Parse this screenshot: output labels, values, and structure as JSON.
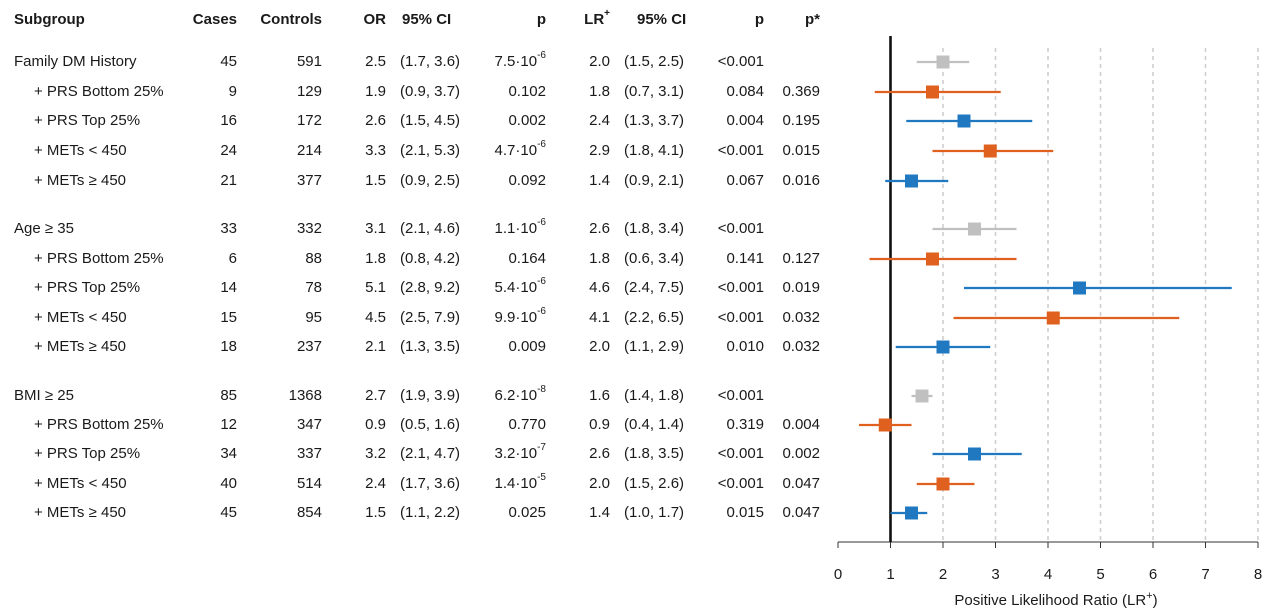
{
  "headers": {
    "subgroup": "Subgroup",
    "cases": "Cases",
    "controls": "Controls",
    "or": "OR",
    "ci1": "95% CI",
    "p1": "p",
    "lr": "LR",
    "lr_sup": "+",
    "ci2": "95% CI",
    "p2": "p",
    "pstar": "p*"
  },
  "rows": [
    {
      "label": "Family DM History",
      "indent": false,
      "cases": "45",
      "controls": "591",
      "or": "2.5",
      "ci": "(1.7, 3.6)",
      "p_base": "7.5·10",
      "p_exp": "-6",
      "lr": "2.0",
      "lrci": "(1.5, 2.5)",
      "lrp": "<0.001",
      "pstar": ""
    },
    {
      "label": "+ PRS Bottom 25%",
      "indent": true,
      "cases": "9",
      "controls": "129",
      "or": "1.9",
      "ci": "(0.9, 3.7)",
      "p_base": "0.102",
      "p_exp": "",
      "lr": "1.8",
      "lrci": "(0.7, 3.1)",
      "lrp": "0.084",
      "pstar": "0.369"
    },
    {
      "label": "+ PRS Top 25%",
      "indent": true,
      "cases": "16",
      "controls": "172",
      "or": "2.6",
      "ci": "(1.5, 4.5)",
      "p_base": "0.002",
      "p_exp": "",
      "lr": "2.4",
      "lrci": "(1.3, 3.7)",
      "lrp": "0.004",
      "pstar": "0.195"
    },
    {
      "label": "+ METs < 450",
      "indent": true,
      "cases": "24",
      "controls": "214",
      "or": "3.3",
      "ci": "(2.1, 5.3)",
      "p_base": "4.7·10",
      "p_exp": "-6",
      "lr": "2.9",
      "lrci": "(1.8, 4.1)",
      "lrp": "<0.001",
      "pstar": "0.015"
    },
    {
      "label": "+ METs ≥ 450",
      "indent": true,
      "cases": "21",
      "controls": "377",
      "or": "1.5",
      "ci": "(0.9, 2.5)",
      "p_base": "0.092",
      "p_exp": "",
      "lr": "1.4",
      "lrci": "(0.9, 2.1)",
      "lrp": "0.067",
      "pstar": "0.016"
    },
    {
      "label": "Age ≥ 35",
      "indent": false,
      "cases": "33",
      "controls": "332",
      "or": "3.1",
      "ci": "(2.1, 4.6)",
      "p_base": "1.1·10",
      "p_exp": "-6",
      "lr": "2.6",
      "lrci": "(1.8, 3.4)",
      "lrp": "<0.001",
      "pstar": ""
    },
    {
      "label": "+ PRS Bottom 25%",
      "indent": true,
      "cases": "6",
      "controls": "88",
      "or": "1.8",
      "ci": "(0.8, 4.2)",
      "p_base": "0.164",
      "p_exp": "",
      "lr": "1.8",
      "lrci": "(0.6, 3.4)",
      "lrp": "0.141",
      "pstar": "0.127"
    },
    {
      "label": "+ PRS Top 25%",
      "indent": true,
      "cases": "14",
      "controls": "78",
      "or": "5.1",
      "ci": "(2.8, 9.2)",
      "p_base": "5.4·10",
      "p_exp": "-6",
      "lr": "4.6",
      "lrci": "(2.4, 7.5)",
      "lrp": "<0.001",
      "pstar": "0.019"
    },
    {
      "label": "+ METs < 450",
      "indent": true,
      "cases": "15",
      "controls": "95",
      "or": "4.5",
      "ci": "(2.5, 7.9)",
      "p_base": "9.9·10",
      "p_exp": "-6",
      "lr": "4.1",
      "lrci": "(2.2, 6.5)",
      "lrp": "<0.001",
      "pstar": "0.032"
    },
    {
      "label": "+ METs ≥ 450",
      "indent": true,
      "cases": "18",
      "controls": "237",
      "or": "2.1",
      "ci": "(1.3, 3.5)",
      "p_base": "0.009",
      "p_exp": "",
      "lr": "2.0",
      "lrci": "(1.1, 2.9)",
      "lrp": "0.010",
      "pstar": "0.032"
    },
    {
      "label": "BMI ≥ 25",
      "indent": false,
      "cases": "85",
      "controls": "1368",
      "or": "2.7",
      "ci": "(1.9, 3.9)",
      "p_base": "6.2·10",
      "p_exp": "-8",
      "lr": "1.6",
      "lrci": "(1.4, 1.8)",
      "lrp": "<0.001",
      "pstar": ""
    },
    {
      "label": "+ PRS Bottom 25%",
      "indent": true,
      "cases": "12",
      "controls": "347",
      "or": "0.9",
      "ci": "(0.5, 1.6)",
      "p_base": "0.770",
      "p_exp": "",
      "lr": "0.9",
      "lrci": "(0.4, 1.4)",
      "lrp": "0.319",
      "pstar": "0.004"
    },
    {
      "label": "+ PRS Top 25%",
      "indent": true,
      "cases": "34",
      "controls": "337",
      "or": "3.2",
      "ci": "(2.1, 4.7)",
      "p_base": "3.2·10",
      "p_exp": "-7",
      "lr": "2.6",
      "lrci": "(1.8, 3.5)",
      "lrp": "<0.001",
      "pstar": "0.002"
    },
    {
      "label": "+ METs < 450",
      "indent": true,
      "cases": "40",
      "controls": "514",
      "or": "2.4",
      "ci": "(1.7, 3.6)",
      "p_base": "1.4·10",
      "p_exp": "-5",
      "lr": "2.0",
      "lrci": "(1.5, 2.6)",
      "lrp": "<0.001",
      "pstar": "0.047"
    },
    {
      "label": "+ METs ≥ 450",
      "indent": true,
      "cases": "45",
      "controls": "854",
      "or": "1.5",
      "ci": "(1.1, 2.2)",
      "p_base": "0.025",
      "p_exp": "",
      "lr": "1.4",
      "lrci": "(1.0, 1.7)",
      "lrp": "0.015",
      "pstar": "0.047"
    }
  ],
  "chart_data": {
    "type": "forest",
    "xlabel": "Positive Likelihood Ratio (LR",
    "xlabel_sup": "+",
    "xlabel_end": ")",
    "xlim": [
      0,
      8
    ],
    "xticks": [
      "0",
      "1",
      "2",
      "3",
      "4",
      "5",
      "6",
      "7",
      "8"
    ],
    "reference_line": 1,
    "grid": "vertical dashed",
    "colors": {
      "overall": "#c0c0c0",
      "bottom_or_low_mets": "#e06020",
      "top_or_high_mets": "#1f78c0"
    },
    "points": [
      {
        "group": "overall",
        "lr": 2.0,
        "lo": 1.5,
        "hi": 2.5
      },
      {
        "group": "bottom_or_low_mets",
        "lr": 1.8,
        "lo": 0.7,
        "hi": 3.1
      },
      {
        "group": "top_or_high_mets",
        "lr": 2.4,
        "lo": 1.3,
        "hi": 3.7
      },
      {
        "group": "bottom_or_low_mets",
        "lr": 2.9,
        "lo": 1.8,
        "hi": 4.1
      },
      {
        "group": "top_or_high_mets",
        "lr": 1.4,
        "lo": 0.9,
        "hi": 2.1
      },
      {
        "group": "overall",
        "lr": 2.6,
        "lo": 1.8,
        "hi": 3.4
      },
      {
        "group": "bottom_or_low_mets",
        "lr": 1.8,
        "lo": 0.6,
        "hi": 3.4
      },
      {
        "group": "top_or_high_mets",
        "lr": 4.6,
        "lo": 2.4,
        "hi": 7.5
      },
      {
        "group": "bottom_or_low_mets",
        "lr": 4.1,
        "lo": 2.2,
        "hi": 6.5
      },
      {
        "group": "top_or_high_mets",
        "lr": 2.0,
        "lo": 1.1,
        "hi": 2.9
      },
      {
        "group": "overall",
        "lr": 1.6,
        "lo": 1.4,
        "hi": 1.8
      },
      {
        "group": "bottom_or_low_mets",
        "lr": 0.9,
        "lo": 0.4,
        "hi": 1.4
      },
      {
        "group": "top_or_high_mets",
        "lr": 2.6,
        "lo": 1.8,
        "hi": 3.5
      },
      {
        "group": "bottom_or_low_mets",
        "lr": 2.0,
        "lo": 1.5,
        "hi": 2.6
      },
      {
        "group": "top_or_high_mets",
        "lr": 1.4,
        "lo": 1.0,
        "hi": 1.7
      }
    ]
  }
}
